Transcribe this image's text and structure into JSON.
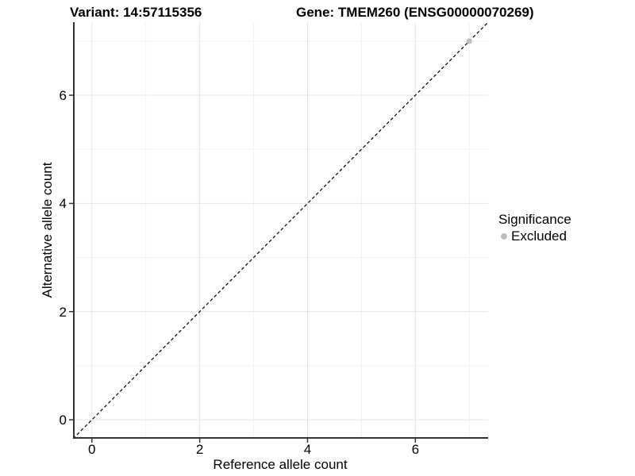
{
  "chart_data": {
    "type": "scatter",
    "titles": {
      "left": "Variant: 14:57115356",
      "right": "Gene: TMEM260 (ENSG00000070269)"
    },
    "xlabel": "Reference allele count",
    "ylabel": "Alternative allele count",
    "xlim": [
      -0.35,
      7.35
    ],
    "ylim": [
      -0.35,
      7.35
    ],
    "x_ticks": {
      "major": [
        0,
        2,
        4,
        6
      ],
      "minor": [
        1,
        3,
        5,
        7
      ]
    },
    "y_ticks": {
      "major": [
        0,
        2,
        4,
        6
      ],
      "minor": [
        1,
        3,
        5,
        7
      ]
    },
    "grid": {
      "on": true,
      "major_color": "#e4e4e4",
      "minor_color": "#f1f1f1"
    },
    "axis_line_color": "#333333",
    "tick_mark_color": "#333333",
    "reference_line": {
      "kind": "identity",
      "style": "dashed",
      "color": "#000000"
    },
    "series": [
      {
        "name": "Excluded",
        "color": "#bdbdbd",
        "points": [
          [
            7,
            7
          ]
        ]
      }
    ],
    "legend": {
      "title": "Significance",
      "position": "right-middle",
      "items": [
        {
          "label": "Excluded",
          "color": "#bdbdbd",
          "marker": "circle"
        }
      ]
    }
  }
}
